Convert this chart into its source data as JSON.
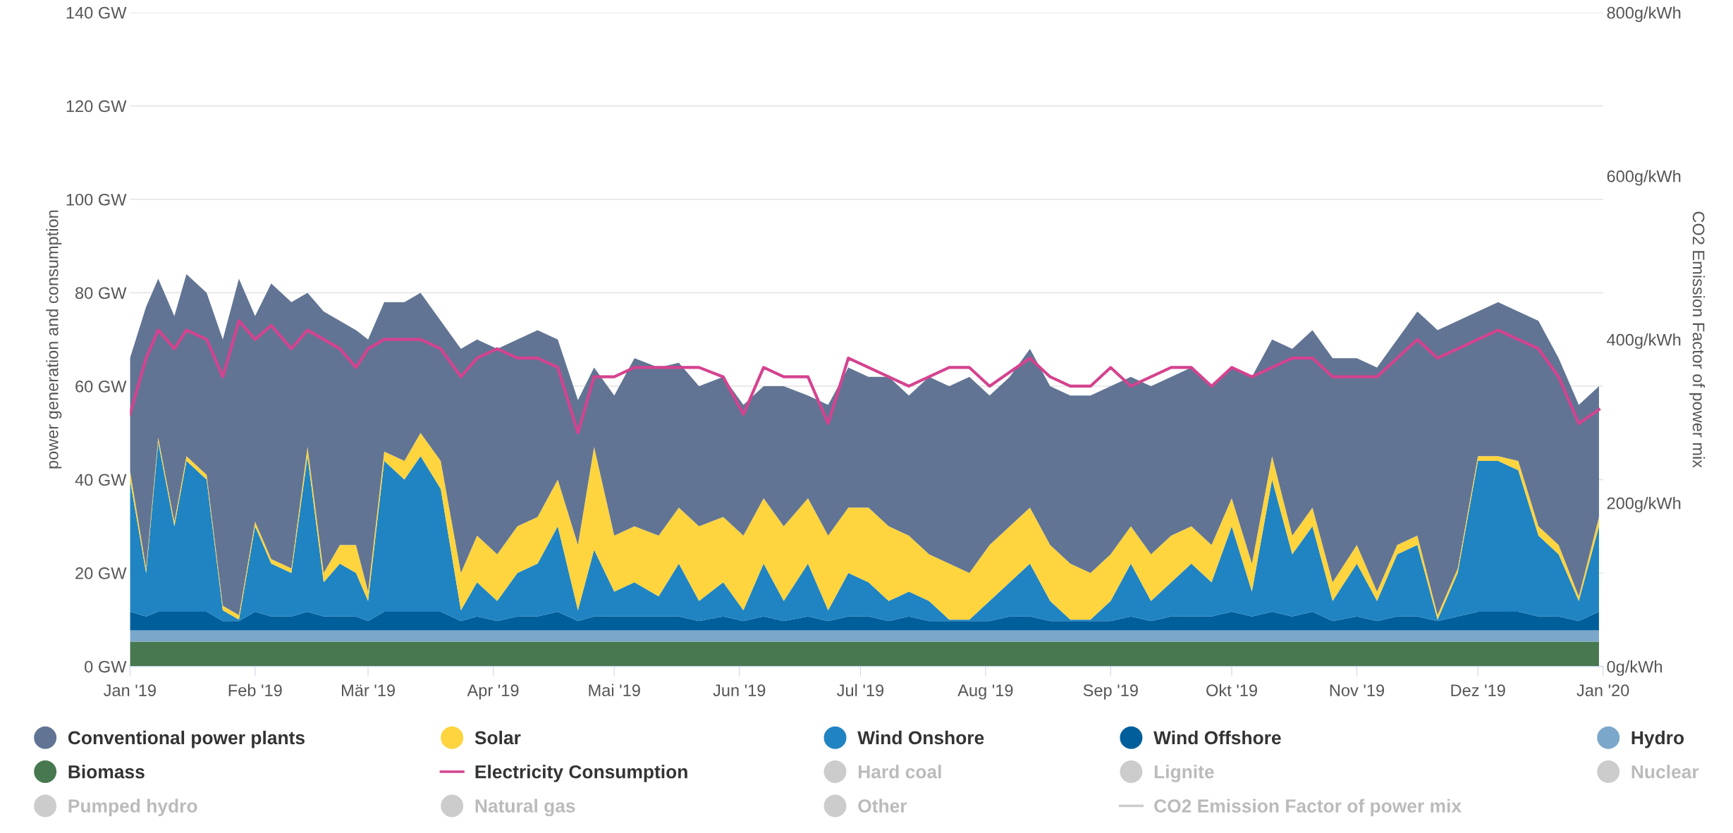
{
  "chart_data": {
    "type": "area",
    "stacked": true,
    "ylabel": "power generation and consumption",
    "y2label": "CO2 Emission Factor of power mix",
    "x": [
      "2019-01-01",
      "2019-01-05",
      "2019-01-08",
      "2019-01-12",
      "2019-01-15",
      "2019-01-20",
      "2019-01-24",
      "2019-01-28",
      "2019-02-01",
      "2019-02-05",
      "2019-02-10",
      "2019-02-14",
      "2019-02-18",
      "2019-02-22",
      "2019-02-26",
      "2019-03-01",
      "2019-03-05",
      "2019-03-10",
      "2019-03-14",
      "2019-03-19",
      "2019-03-24",
      "2019-03-28",
      "2019-04-02",
      "2019-04-07",
      "2019-04-12",
      "2019-04-17",
      "2019-04-22",
      "2019-04-26",
      "2019-05-01",
      "2019-05-06",
      "2019-05-12",
      "2019-05-17",
      "2019-05-22",
      "2019-05-28",
      "2019-06-02",
      "2019-06-07",
      "2019-06-12",
      "2019-06-18",
      "2019-06-23",
      "2019-06-28",
      "2019-07-03",
      "2019-07-08",
      "2019-07-13",
      "2019-07-18",
      "2019-07-23",
      "2019-07-28",
      "2019-08-02",
      "2019-08-07",
      "2019-08-12",
      "2019-08-17",
      "2019-08-22",
      "2019-08-27",
      "2019-09-01",
      "2019-09-06",
      "2019-09-11",
      "2019-09-16",
      "2019-09-21",
      "2019-09-26",
      "2019-10-01",
      "2019-10-06",
      "2019-10-11",
      "2019-10-16",
      "2019-10-21",
      "2019-10-26",
      "2019-11-01",
      "2019-11-06",
      "2019-11-11",
      "2019-11-16",
      "2019-11-21",
      "2019-11-26",
      "2019-12-01",
      "2019-12-06",
      "2019-12-11",
      "2019-12-16",
      "2019-12-21",
      "2019-12-26",
      "2019-12-31"
    ],
    "series": [
      {
        "name": "Biomass",
        "color": "#47784f",
        "values": [
          5.3,
          5.3,
          5.3,
          5.3,
          5.3,
          5.3,
          5.3,
          5.3,
          5.3,
          5.3,
          5.3,
          5.3,
          5.3,
          5.3,
          5.3,
          5.3,
          5.3,
          5.3,
          5.3,
          5.3,
          5.3,
          5.3,
          5.3,
          5.3,
          5.3,
          5.3,
          5.3,
          5.3,
          5.3,
          5.3,
          5.3,
          5.3,
          5.3,
          5.3,
          5.3,
          5.3,
          5.3,
          5.3,
          5.3,
          5.3,
          5.3,
          5.3,
          5.3,
          5.3,
          5.3,
          5.3,
          5.3,
          5.3,
          5.3,
          5.3,
          5.3,
          5.3,
          5.3,
          5.3,
          5.3,
          5.3,
          5.3,
          5.3,
          5.3,
          5.3,
          5.3,
          5.3,
          5.3,
          5.3,
          5.3,
          5.3,
          5.3,
          5.3,
          5.3,
          5.3,
          5.3,
          5.3,
          5.3,
          5.3,
          5.3,
          5.3,
          5.3
        ]
      },
      {
        "name": "Hydro",
        "color": "#7ba7ca",
        "values": [
          2.4,
          2.4,
          2.4,
          2.4,
          2.4,
          2.4,
          2.4,
          2.4,
          2.4,
          2.4,
          2.4,
          2.4,
          2.4,
          2.4,
          2.4,
          2.4,
          2.4,
          2.4,
          2.4,
          2.4,
          2.4,
          2.4,
          2.4,
          2.4,
          2.4,
          2.4,
          2.4,
          2.4,
          2.4,
          2.4,
          2.4,
          2.4,
          2.4,
          2.4,
          2.4,
          2.4,
          2.4,
          2.4,
          2.4,
          2.4,
          2.4,
          2.4,
          2.4,
          2.4,
          2.4,
          2.4,
          2.4,
          2.4,
          2.4,
          2.4,
          2.4,
          2.4,
          2.4,
          2.4,
          2.4,
          2.4,
          2.4,
          2.4,
          2.4,
          2.4,
          2.4,
          2.4,
          2.4,
          2.4,
          2.4,
          2.4,
          2.4,
          2.4,
          2.4,
          2.4,
          2.4,
          2.4,
          2.4,
          2.4,
          2.4,
          2.4,
          2.4
        ]
      },
      {
        "name": "Wind Offshore",
        "color": "#005e9b",
        "values": [
          4,
          3,
          4,
          4,
          4,
          4,
          2,
          2,
          4,
          3,
          3,
          4,
          3,
          3,
          3,
          2,
          4,
          4,
          4,
          4,
          2,
          3,
          2,
          3,
          3,
          4,
          2,
          3,
          3,
          3,
          3,
          3,
          2,
          3,
          2,
          3,
          2,
          3,
          2,
          3,
          3,
          2,
          3,
          2,
          2,
          2,
          2,
          3,
          3,
          2,
          2,
          2,
          2,
          3,
          2,
          3,
          3,
          3,
          4,
          3,
          4,
          3,
          4,
          2,
          3,
          2,
          3,
          3,
          2,
          3,
          4,
          4,
          4,
          3,
          3,
          2,
          4
        ]
      },
      {
        "name": "Wind Onshore",
        "color": "#2084c2",
        "values": [
          28.3,
          9.3,
          36.3,
          18.3,
          32.3,
          28.3,
          2.3,
          0.3,
          18.3,
          11.3,
          9.3,
          33.3,
          7.3,
          11.3,
          9.3,
          4.3,
          32.3,
          28.3,
          33.3,
          26.3,
          2.3,
          7.3,
          4.3,
          9.3,
          11.3,
          18.3,
          2.3,
          14.3,
          5.3,
          7.3,
          4.3,
          11.3,
          4.3,
          7.3,
          2.3,
          11.3,
          4.3,
          11.3,
          2.3,
          9.3,
          7.3,
          4.3,
          5.3,
          4.3,
          0.3,
          0.3,
          4.3,
          7.3,
          11.3,
          4.3,
          0.3,
          0.3,
          4.3,
          11.3,
          4.3,
          7.3,
          11.3,
          7.3,
          18.3,
          5.3,
          28.3,
          13.3,
          18.3,
          4.3,
          11.3,
          4.3,
          13.3,
          15.3,
          0.3,
          9.3,
          32.3,
          32.3,
          30.3,
          17.3,
          13.3,
          4.3,
          18.3
        ]
      },
      {
        "name": "Solar",
        "color": "#fed43f",
        "values": [
          2,
          1,
          1,
          1,
          1,
          1,
          1,
          1,
          1,
          1,
          1,
          2,
          2,
          4,
          6,
          2,
          2,
          4,
          5,
          6,
          8,
          10,
          10,
          10,
          10,
          10,
          14,
          22,
          12,
          12,
          13,
          12,
          16,
          14,
          16,
          14,
          16,
          14,
          16,
          14,
          16,
          16,
          12,
          10,
          12,
          10,
          12,
          12,
          12,
          12,
          12,
          10,
          10,
          8,
          10,
          10,
          8,
          8,
          6,
          6,
          5,
          4,
          4,
          4,
          4,
          2,
          2,
          2,
          1,
          1,
          1,
          1,
          2,
          2,
          2,
          1,
          2
        ]
      },
      {
        "name": "Conventional power plants",
        "color": "#627493",
        "values": [
          24,
          56,
          34,
          44,
          39,
          39,
          57,
          72,
          44,
          59,
          57,
          33,
          56,
          48,
          46,
          54,
          32,
          34,
          30,
          30,
          48,
          42,
          44,
          40,
          40,
          30,
          31,
          17,
          30,
          36,
          36,
          31,
          30,
          30,
          28,
          24,
          30,
          22,
          28,
          30,
          28,
          32,
          30,
          38,
          38,
          42,
          32,
          32,
          34,
          34,
          36,
          38,
          36,
          32,
          36,
          34,
          34,
          34,
          28,
          40,
          25,
          40,
          38,
          48,
          40,
          48,
          44,
          48,
          61,
          53,
          31,
          33,
          32,
          44,
          40,
          41,
          28
        ]
      },
      {
        "name": "Electricity Consumption",
        "type": "line",
        "color": "#d4438f",
        "values": [
          54,
          66,
          72,
          68,
          72,
          70,
          62,
          74,
          70,
          73,
          68,
          72,
          70,
          68,
          64,
          68,
          70,
          70,
          70,
          68,
          62,
          66,
          68,
          66,
          66,
          64,
          50,
          62,
          62,
          64,
          64,
          64,
          64,
          62,
          54,
          64,
          62,
          62,
          52,
          66,
          64,
          62,
          60,
          62,
          64,
          64,
          60,
          63,
          66,
          62,
          60,
          60,
          64,
          60,
          62,
          64,
          64,
          60,
          64,
          62,
          64,
          66,
          66,
          62,
          62,
          62,
          66,
          70,
          66,
          68,
          70,
          72,
          70,
          68,
          62,
          52,
          55
        ]
      },
      {
        "name": "Hard coal",
        "color": "#cccccc",
        "values": [
          null,
          null,
          null,
          null,
          null,
          null,
          null,
          null,
          null,
          null,
          null,
          null,
          null,
          null,
          null,
          null,
          null,
          null,
          null,
          null,
          null,
          null,
          null,
          null,
          null,
          null,
          null,
          null,
          null,
          null,
          null,
          null,
          null,
          null,
          null,
          null,
          null,
          null,
          null,
          null,
          null,
          null,
          null,
          null,
          null,
          null,
          null,
          null,
          null,
          null,
          null,
          null,
          null,
          null,
          null,
          null,
          null,
          null,
          null,
          null,
          null,
          null,
          null,
          null,
          null,
          null,
          null,
          null,
          null,
          null,
          null,
          null,
          null,
          null,
          null,
          null,
          null
        ]
      },
      {
        "name": "Lignite",
        "color": "#cccccc",
        "values": [
          null,
          null,
          null,
          null,
          null,
          null,
          null,
          null,
          null,
          null,
          null,
          null,
          null,
          null,
          null,
          null,
          null,
          null,
          null,
          null,
          null,
          null,
          null,
          null,
          null,
          null,
          null,
          null,
          null,
          null,
          null,
          null,
          null,
          null,
          null,
          null,
          null,
          null,
          null,
          null,
          null,
          null,
          null,
          null,
          null,
          null,
          null,
          null,
          null,
          null,
          null,
          null,
          null,
          null,
          null,
          null,
          null,
          null,
          null,
          null,
          null,
          null,
          null,
          null,
          null,
          null,
          null,
          null,
          null,
          null,
          null,
          null,
          null,
          null,
          null,
          null,
          null
        ]
      },
      {
        "name": "Nuclear",
        "color": "#cccccc",
        "values": [
          null,
          null,
          null,
          null,
          null,
          null,
          null,
          null,
          null,
          null,
          null,
          null,
          null,
          null,
          null,
          null,
          null,
          null,
          null,
          null,
          null,
          null,
          null,
          null,
          null,
          null,
          null,
          null,
          null,
          null,
          null,
          null,
          null,
          null,
          null,
          null,
          null,
          null,
          null,
          null,
          null,
          null,
          null,
          null,
          null,
          null,
          null,
          null,
          null,
          null,
          null,
          null,
          null,
          null,
          null,
          null,
          null,
          null,
          null,
          null,
          null,
          null,
          null,
          null,
          null,
          null,
          null,
          null,
          null,
          null,
          null,
          null,
          null,
          null,
          null,
          null,
          null
        ]
      },
      {
        "name": "Pumped hydro",
        "color": "#cccccc",
        "values": [
          null,
          null,
          null,
          null,
          null,
          null,
          null,
          null,
          null,
          null,
          null,
          null,
          null,
          null,
          null,
          null,
          null,
          null,
          null,
          null,
          null,
          null,
          null,
          null,
          null,
          null,
          null,
          null,
          null,
          null,
          null,
          null,
          null,
          null,
          null,
          null,
          null,
          null,
          null,
          null,
          null,
          null,
          null,
          null,
          null,
          null,
          null,
          null,
          null,
          null,
          null,
          null,
          null,
          null,
          null,
          null,
          null,
          null,
          null,
          null,
          null,
          null,
          null,
          null,
          null,
          null,
          null,
          null,
          null,
          null,
          null,
          null,
          null,
          null,
          null,
          null,
          null
        ]
      },
      {
        "name": "Natural gas",
        "color": "#cccccc",
        "values": [
          null,
          null,
          null,
          null,
          null,
          null,
          null,
          null,
          null,
          null,
          null,
          null,
          null,
          null,
          null,
          null,
          null,
          null,
          null,
          null,
          null,
          null,
          null,
          null,
          null,
          null,
          null,
          null,
          null,
          null,
          null,
          null,
          null,
          null,
          null,
          null,
          null,
          null,
          null,
          null,
          null,
          null,
          null,
          null,
          null,
          null,
          null,
          null,
          null,
          null,
          null,
          null,
          null,
          null,
          null,
          null,
          null,
          null,
          null,
          null,
          null,
          null,
          null,
          null,
          null,
          null,
          null,
          null,
          null,
          null,
          null,
          null,
          null,
          null,
          null,
          null,
          null
        ]
      },
      {
        "name": "Other",
        "color": "#cccccc",
        "values": [
          null,
          null,
          null,
          null,
          null,
          null,
          null,
          null,
          null,
          null,
          null,
          null,
          null,
          null,
          null,
          null,
          null,
          null,
          null,
          null,
          null,
          null,
          null,
          null,
          null,
          null,
          null,
          null,
          null,
          null,
          null,
          null,
          null,
          null,
          null,
          null,
          null,
          null,
          null,
          null,
          null,
          null,
          null,
          null,
          null,
          null,
          null,
          null,
          null,
          null,
          null,
          null,
          null,
          null,
          null,
          null,
          null,
          null,
          null,
          null,
          null,
          null,
          null,
          null,
          null,
          null,
          null,
          null,
          null,
          null,
          null,
          null,
          null,
          null,
          null,
          null,
          null
        ]
      },
      {
        "name": "CO2 Emission Factor of power mix",
        "type": "line",
        "color": "#cccccc",
        "values": [
          null,
          null,
          null,
          null,
          null,
          null,
          null,
          null,
          null,
          null,
          null,
          null,
          null,
          null,
          null,
          null,
          null,
          null,
          null,
          null,
          null,
          null,
          null,
          null,
          null,
          null,
          null,
          null,
          null,
          null,
          null,
          null,
          null,
          null,
          null,
          null,
          null,
          null,
          null,
          null,
          null,
          null,
          null,
          null,
          null,
          null,
          null,
          null,
          null,
          null,
          null,
          null,
          null,
          null,
          null,
          null,
          null,
          null,
          null,
          null,
          null,
          null,
          null,
          null,
          null,
          null,
          null,
          null,
          null,
          null,
          null,
          null,
          null,
          null,
          null,
          null,
          null
        ]
      }
    ],
    "xlim": [
      "2019-01-01",
      "2020-01-01"
    ],
    "xticks": [
      {
        "value": "2019-01-01",
        "label": "Jan '19"
      },
      {
        "value": "2019-02-01",
        "label": "Feb '19"
      },
      {
        "value": "2019-03-01",
        "label": "Mär '19"
      },
      {
        "value": "2019-04-01",
        "label": "Apr '19"
      },
      {
        "value": "2019-05-01",
        "label": "Mai '19"
      },
      {
        "value": "2019-06-01",
        "label": "Jun '19"
      },
      {
        "value": "2019-07-01",
        "label": "Jul '19"
      },
      {
        "value": "2019-08-01",
        "label": "Aug '19"
      },
      {
        "value": "2019-09-01",
        "label": "Sep '19"
      },
      {
        "value": "2019-10-01",
        "label": "Okt '19"
      },
      {
        "value": "2019-11-01",
        "label": "Nov '19"
      },
      {
        "value": "2019-12-01",
        "label": "Dez '19"
      },
      {
        "value": "2020-01-01",
        "label": "Jan '20"
      }
    ],
    "ylim": [
      0,
      140
    ],
    "yticks": [
      {
        "value": 0,
        "label": "0 GW"
      },
      {
        "value": 20,
        "label": "20 GW"
      },
      {
        "value": 40,
        "label": "40 GW"
      },
      {
        "value": 60,
        "label": "60 GW"
      },
      {
        "value": 80,
        "label": "80 GW"
      },
      {
        "value": 100,
        "label": "100 GW"
      },
      {
        "value": 120,
        "label": "120 GW"
      },
      {
        "value": 140,
        "label": "140 GW"
      }
    ],
    "y2lim": [
      0,
      800
    ],
    "y2ticks": [
      {
        "value": 0,
        "label": "0g/kWh"
      },
      {
        "value": 200,
        "label": "200g/kWh"
      },
      {
        "value": 400,
        "label": "400g/kWh"
      },
      {
        "value": 600,
        "label": "600g/kWh"
      },
      {
        "value": 800,
        "label": "800g/kWh"
      }
    ],
    "grid": "y",
    "legend": "bottom"
  }
}
